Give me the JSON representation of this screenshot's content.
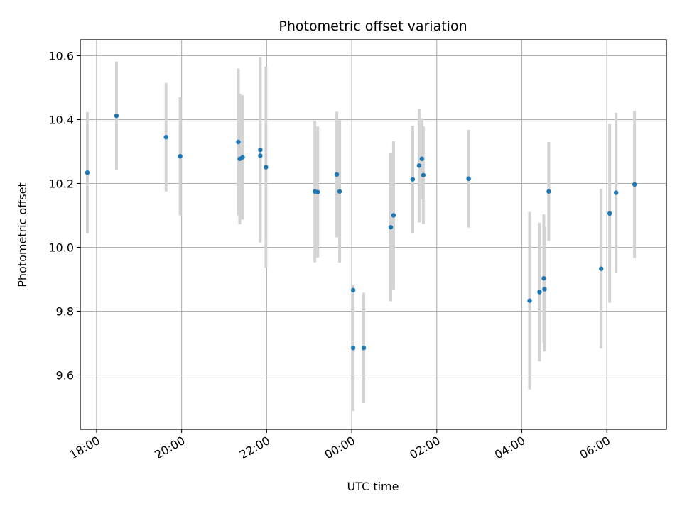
{
  "chart_data": {
    "type": "scatter",
    "title": "Photometric offset variation",
    "xlabel": "UTC time",
    "ylabel": "Photometric offset",
    "xlim": [
      "17:37",
      "07:24"
    ],
    "ylim": [
      9.43,
      10.65
    ],
    "x_ticks": [
      "18:00",
      "20:00",
      "22:00",
      "00:00",
      "02:00",
      "04:00",
      "06:00"
    ],
    "y_ticks": [
      "9.6",
      "9.8",
      "10.0",
      "10.2",
      "10.4",
      "10.6"
    ],
    "grid": true,
    "colors": {
      "point": "#1f77b4",
      "errorbar": "#d3d3d3",
      "grid": "#b0b0b0"
    },
    "points": [
      {
        "x": "17:47",
        "y": 10.234,
        "err": 0.19
      },
      {
        "x": "18:28",
        "y": 10.412,
        "err": 0.17
      },
      {
        "x": "19:38",
        "y": 10.345,
        "err": 0.17
      },
      {
        "x": "19:58",
        "y": 10.285,
        "err": 0.185
      },
      {
        "x": "21:20",
        "y": 10.33,
        "err": 0.23
      },
      {
        "x": "21:22",
        "y": 10.277,
        "err": 0.205
      },
      {
        "x": "21:26",
        "y": 10.282,
        "err": 0.195
      },
      {
        "x": "21:51",
        "y": 10.305,
        "err": 0.29
      },
      {
        "x": "21:51",
        "y": 10.287,
        "err": 0.0
      },
      {
        "x": "21:59",
        "y": 10.251,
        "err": 0.315
      },
      {
        "x": "23:08",
        "y": 10.175,
        "err": 0.222
      },
      {
        "x": "23:12",
        "y": 10.173,
        "err": 0.205
      },
      {
        "x": "23:39",
        "y": 10.228,
        "err": 0.197
      },
      {
        "x": "23:43",
        "y": 10.175,
        "err": 0.223
      },
      {
        "x": "00:02",
        "y": 9.866,
        "err": 0.0
      },
      {
        "x": "00:02",
        "y": 9.685,
        "err": 0.197
      },
      {
        "x": "00:17",
        "y": 9.685,
        "err": 0.173
      },
      {
        "x": "00:55",
        "y": 10.063,
        "err": 0.232
      },
      {
        "x": "00:59",
        "y": 10.1,
        "err": 0.232
      },
      {
        "x": "01:26",
        "y": 10.213,
        "err": 0.168
      },
      {
        "x": "01:35",
        "y": 10.256,
        "err": 0.178
      },
      {
        "x": "01:39",
        "y": 10.277,
        "err": 0.127
      },
      {
        "x": "01:41",
        "y": 10.226,
        "err": 0.153
      },
      {
        "x": "02:45",
        "y": 10.215,
        "err": 0.153
      },
      {
        "x": "04:11",
        "y": 9.833,
        "err": 0.278
      },
      {
        "x": "04:25",
        "y": 9.86,
        "err": 0.217
      },
      {
        "x": "04:31",
        "y": 9.903,
        "err": 0.2
      },
      {
        "x": "04:32",
        "y": 9.869,
        "err": 0.195
      },
      {
        "x": "04:38",
        "y": 10.175,
        "err": 0.155
      },
      {
        "x": "05:52",
        "y": 9.933,
        "err": 0.25
      },
      {
        "x": "06:04",
        "y": 10.106,
        "err": 0.28
      },
      {
        "x": "06:13",
        "y": 10.171,
        "err": 0.25
      },
      {
        "x": "06:39",
        "y": 10.197,
        "err": 0.23
      }
    ]
  }
}
